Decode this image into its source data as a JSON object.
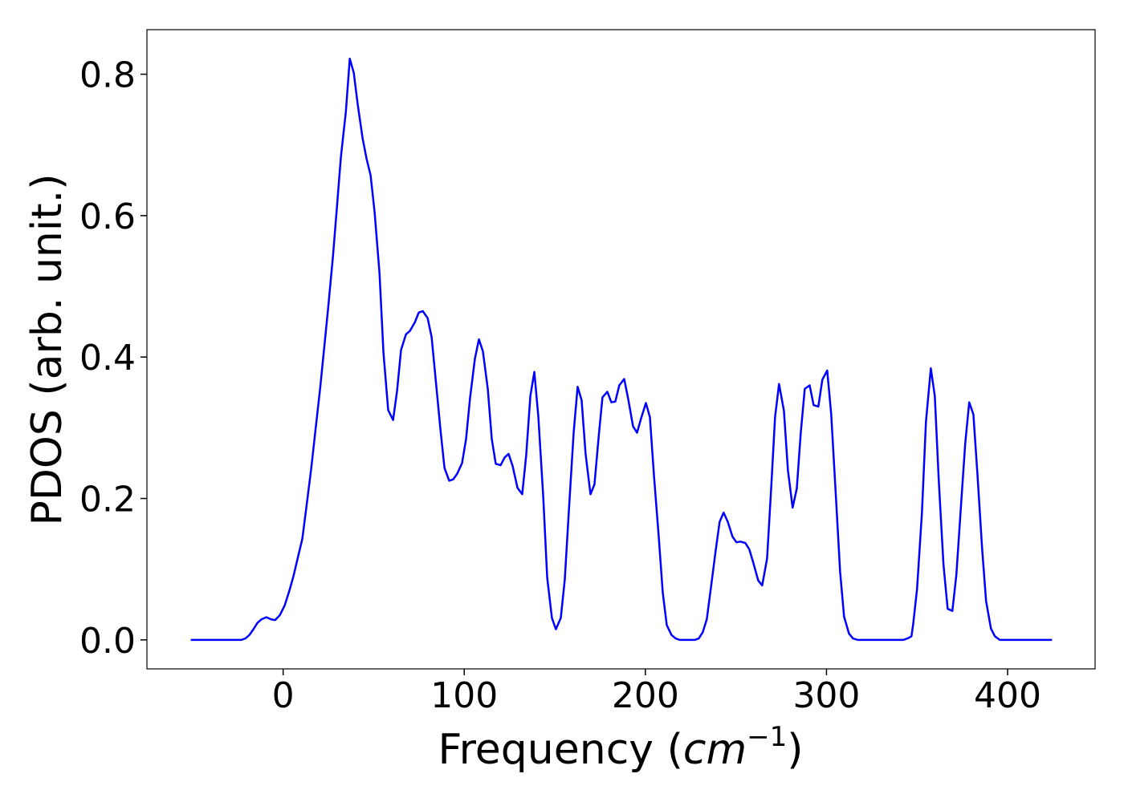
{
  "chart_data": {
    "type": "line",
    "xlabel": [
      "Frequency (",
      "cm",
      "−1",
      ")"
    ],
    "ylabel": "PDOS (arb. unit.)",
    "color": "#0000ff",
    "xlim": [
      -75.2,
      448.3
    ],
    "ylim": [
      -0.041,
      0.863
    ],
    "xticks": [
      0,
      100,
      200,
      300,
      400
    ],
    "yticks": [
      {
        "value": 0,
        "label": "0.0"
      },
      0.2,
      0.4,
      0.6,
      0.8
    ],
    "x": [
      -51.0,
      -23.0,
      -20.8,
      -18.6,
      -16.4,
      -14.2,
      -12.0,
      -9.3,
      -6.6,
      -4.4,
      -1.8,
      0.9,
      3.5,
      5.8,
      8.0,
      10.6,
      12.8,
      15.5,
      17.7,
      20.4,
      22.6,
      24.8,
      27.5,
      29.7,
      31.9,
      34.6,
      36.8,
      39.0,
      41.2,
      43.9,
      46.1,
      48.3,
      50.5,
      53.2,
      55.4,
      58.0,
      60.7,
      62.9,
      65.1,
      67.8,
      70.0,
      72.7,
      74.9,
      77.1,
      79.8,
      82.0,
      84.2,
      86.8,
      89.1,
      91.7,
      93.9,
      96.1,
      98.8,
      101.0,
      103.2,
      105.9,
      108.1,
      110.3,
      113.0,
      115.2,
      117.4,
      120.1,
      122.3,
      124.5,
      126.7,
      129.4,
      132.0,
      134.2,
      136.5,
      138.7,
      140.9,
      143.6,
      145.8,
      148.4,
      150.6,
      153.3,
      155.5,
      157.7,
      160.4,
      162.6,
      164.8,
      167.0,
      169.7,
      171.9,
      174.1,
      176.3,
      179.0,
      181.2,
      183.4,
      185.6,
      188.3,
      190.5,
      193.2,
      195.4,
      197.6,
      200.3,
      202.5,
      204.7,
      207.4,
      209.6,
      211.8,
      214.4,
      216.7,
      218.9,
      227.3,
      229.5,
      231.7,
      233.9,
      236.2,
      238.8,
      241.0,
      243.2,
      245.5,
      248.1,
      250.3,
      252.5,
      255.2,
      257.4,
      259.6,
      262.3,
      264.5,
      267.2,
      269.4,
      271.6,
      273.8,
      276.5,
      278.7,
      281.3,
      283.6,
      285.8,
      288.0,
      290.7,
      292.9,
      295.5,
      297.7,
      300.4,
      302.6,
      305.3,
      307.5,
      309.7,
      312.4,
      314.6,
      317.2,
      342.5,
      344.7,
      346.9,
      347.8,
      350.0,
      352.7,
      354.9,
      357.6,
      359.8,
      362.0,
      364.6,
      366.9,
      369.5,
      371.7,
      374.0,
      376.6,
      378.8,
      381.1,
      383.3,
      385.9,
      388.1,
      390.8,
      393.0,
      395.7,
      424.5
    ],
    "values": [
      0,
      0,
      0.002,
      0.007,
      0.015,
      0.024,
      0.029,
      0.032,
      0.029,
      0.028,
      0.035,
      0.049,
      0.07,
      0.091,
      0.115,
      0.143,
      0.187,
      0.242,
      0.293,
      0.355,
      0.411,
      0.468,
      0.542,
      0.612,
      0.683,
      0.746,
      0.822,
      0.802,
      0.757,
      0.709,
      0.68,
      0.657,
      0.605,
      0.519,
      0.406,
      0.325,
      0.311,
      0.352,
      0.41,
      0.432,
      0.437,
      0.449,
      0.463,
      0.465,
      0.455,
      0.428,
      0.369,
      0.299,
      0.243,
      0.225,
      0.227,
      0.235,
      0.25,
      0.284,
      0.342,
      0.398,
      0.425,
      0.408,
      0.355,
      0.284,
      0.249,
      0.247,
      0.258,
      0.263,
      0.246,
      0.215,
      0.206,
      0.261,
      0.345,
      0.379,
      0.316,
      0.203,
      0.088,
      0.031,
      0.015,
      0.031,
      0.085,
      0.18,
      0.293,
      0.358,
      0.339,
      0.263,
      0.206,
      0.22,
      0.284,
      0.343,
      0.351,
      0.336,
      0.337,
      0.36,
      0.369,
      0.341,
      0.302,
      0.293,
      0.313,
      0.335,
      0.315,
      0.234,
      0.145,
      0.067,
      0.021,
      0.007,
      0.002,
      0,
      0,
      0.002,
      0.011,
      0.029,
      0.074,
      0.126,
      0.167,
      0.18,
      0.167,
      0.146,
      0.138,
      0.139,
      0.137,
      0.128,
      0.109,
      0.084,
      0.077,
      0.115,
      0.212,
      0.315,
      0.362,
      0.324,
      0.24,
      0.187,
      0.214,
      0.293,
      0.355,
      0.36,
      0.332,
      0.33,
      0.368,
      0.381,
      0.319,
      0.198,
      0.097,
      0.033,
      0.009,
      0.002,
      0,
      0,
      0.002,
      0.005,
      0.021,
      0.072,
      0.18,
      0.308,
      0.384,
      0.345,
      0.225,
      0.106,
      0.044,
      0.041,
      0.092,
      0.18,
      0.278,
      0.336,
      0.319,
      0.236,
      0.13,
      0.055,
      0.016,
      0.005,
      0,
      0
    ]
  }
}
